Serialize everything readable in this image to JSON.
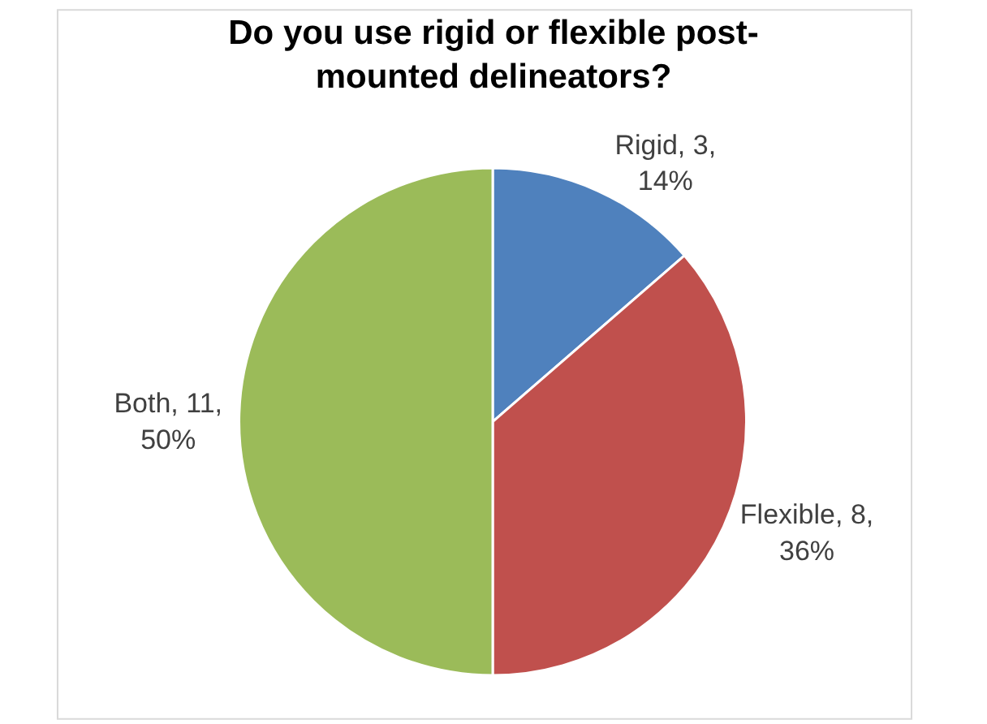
{
  "chart_data": {
    "type": "pie",
    "title": "Do you use rigid or flexible post-mounted delineators?",
    "categories": [
      "Rigid",
      "Flexible",
      "Both"
    ],
    "values": [
      3,
      8,
      11
    ],
    "colors": [
      "#4f81bd",
      "#c0504d",
      "#9bbb59"
    ],
    "value_labels": [
      "3, 14%",
      "8, 36%",
      "11, 50%"
    ],
    "legend": false
  }
}
